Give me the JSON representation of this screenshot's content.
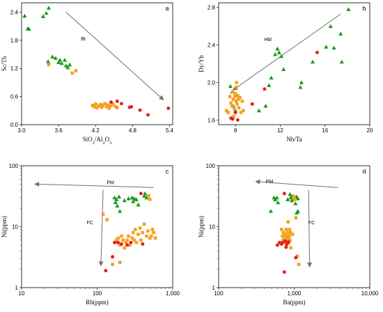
{
  "colors": {
    "green": "#1a9a1a",
    "orange": "#f5a020",
    "red": "#e8201a",
    "arrow": "#707070",
    "frame": "#000000"
  },
  "chart_data": [
    {
      "id": "a",
      "type": "scatter",
      "letter": "a",
      "xlabel": "SiO2/Al2O3",
      "ylabel": "Sc/Th",
      "xscale": "linear",
      "yscale": "linear",
      "xlim": [
        3.0,
        5.45
      ],
      "ylim": [
        0.0,
        2.6
      ],
      "xticks": [
        3.0,
        3.6,
        4.2,
        4.8,
        5.4
      ],
      "xticklabels": [
        "3.0",
        "3.6",
        "4.2",
        "4.8",
        "5.4"
      ],
      "yticks": [
        0.0,
        0.6,
        1.2,
        1.8,
        2.4
      ],
      "yticklabels": [
        "0.0",
        "0.6",
        "1.2",
        "1.8",
        "2.4"
      ],
      "series": [
        {
          "marker": "triangle",
          "color_key": "green",
          "points": [
            [
              3.05,
              2.32
            ],
            [
              3.1,
              2.05
            ],
            [
              3.12,
              2.04
            ],
            [
              3.35,
              2.31
            ],
            [
              3.4,
              2.38
            ],
            [
              3.44,
              2.49
            ],
            [
              3.43,
              1.35
            ],
            [
              3.5,
              1.45
            ],
            [
              3.55,
              1.42
            ],
            [
              3.6,
              1.33
            ],
            [
              3.62,
              1.38
            ],
            [
              3.65,
              1.31
            ],
            [
              3.7,
              1.38
            ],
            [
              3.72,
              1.26
            ],
            [
              3.75,
              1.22
            ],
            [
              3.78,
              1.28
            ]
          ]
        },
        {
          "marker": "square",
          "color_key": "orange",
          "points": [
            [
              3.44,
              1.28
            ],
            [
              3.82,
              1.1
            ],
            [
              3.88,
              1.15
            ],
            [
              4.15,
              0.41
            ],
            [
              4.18,
              0.38
            ],
            [
              4.2,
              0.44
            ],
            [
              4.22,
              0.36
            ],
            [
              4.25,
              0.4
            ],
            [
              4.28,
              0.43
            ],
            [
              4.3,
              0.37
            ],
            [
              4.32,
              0.41
            ],
            [
              4.35,
              0.45
            ],
            [
              4.38,
              0.38
            ],
            [
              4.4,
              0.42
            ],
            [
              4.42,
              0.35
            ],
            [
              4.45,
              0.4
            ],
            [
              4.48,
              0.44
            ],
            [
              4.52,
              0.39
            ],
            [
              4.55,
              0.36
            ]
          ]
        },
        {
          "marker": "circle",
          "color_key": "red",
          "points": [
            [
              4.45,
              0.48
            ],
            [
              4.55,
              0.5
            ],
            [
              4.62,
              0.45
            ],
            [
              4.75,
              0.37
            ],
            [
              4.78,
              0.38
            ],
            [
              4.92,
              0.31
            ],
            [
              5.05,
              0.21
            ],
            [
              5.38,
              0.35
            ]
          ]
        }
      ],
      "annotations": [
        {
          "text": "Bt",
          "x": 4.0,
          "y": 1.8,
          "arrow": [
            [
              3.72,
              2.4
            ],
            [
              5.3,
              0.53
            ]
          ]
        }
      ]
    },
    {
      "id": "b",
      "type": "scatter",
      "letter": "b",
      "xlabel": "Nb/Ta",
      "ylabel": "Dy/Yb",
      "xscale": "linear",
      "yscale": "linear",
      "xlim": [
        6.5,
        20.0
      ],
      "ylim": [
        1.55,
        2.85
      ],
      "xticks": [
        8,
        12,
        16,
        20
      ],
      "xticklabels": [
        "8",
        "12",
        "16",
        "20"
      ],
      "yticks": [
        1.6,
        2.0,
        2.4,
        2.8
      ],
      "yticklabels": [
        "1.6",
        "2.0",
        "2.4",
        "2.8"
      ],
      "series": [
        {
          "marker": "triangle",
          "color_key": "green",
          "points": [
            [
              7.55,
              1.96
            ],
            [
              7.7,
              1.9
            ],
            [
              7.8,
              1.75
            ],
            [
              8.0,
              1.7
            ],
            [
              10.1,
              1.7
            ],
            [
              10.7,
              1.75
            ],
            [
              11.0,
              1.97
            ],
            [
              11.2,
              2.05
            ],
            [
              11.55,
              2.3
            ],
            [
              11.75,
              2.36
            ],
            [
              11.9,
              2.32
            ],
            [
              12.1,
              2.28
            ],
            [
              12.3,
              2.14
            ],
            [
              13.8,
              1.95
            ],
            [
              13.9,
              2.0
            ],
            [
              14.9,
              2.22
            ],
            [
              16.1,
              2.38
            ],
            [
              16.5,
              2.6
            ],
            [
              16.8,
              2.37
            ],
            [
              17.4,
              2.52
            ],
            [
              17.5,
              2.22
            ],
            [
              18.1,
              2.78
            ]
          ]
        },
        {
          "marker": "square",
          "color_key": "orange",
          "points": [
            [
              7.2,
              1.7
            ],
            [
              7.35,
              1.68
            ],
            [
              7.5,
              1.85
            ],
            [
              7.6,
              1.78
            ],
            [
              7.7,
              1.75
            ],
            [
              7.75,
              1.9
            ],
            [
              7.8,
              1.82
            ],
            [
              7.85,
              1.64
            ],
            [
              7.9,
              1.72
            ],
            [
              7.95,
              1.85
            ],
            [
              8.0,
              1.88
            ],
            [
              8.05,
              1.8
            ],
            [
              8.1,
              1.95
            ],
            [
              8.15,
              1.77
            ],
            [
              8.2,
              1.86
            ],
            [
              8.25,
              1.82
            ],
            [
              8.3,
              1.73
            ],
            [
              8.4,
              1.84
            ],
            [
              8.5,
              1.68
            ],
            [
              8.6,
              1.8
            ],
            [
              8.7,
              1.7
            ],
            [
              8.1,
              2.0
            ]
          ]
        },
        {
          "marker": "circle",
          "color_key": "red",
          "points": [
            [
              7.6,
              1.62
            ],
            [
              7.75,
              1.61
            ],
            [
              8.0,
              1.68
            ],
            [
              8.2,
              1.6
            ],
            [
              9.5,
              1.77
            ],
            [
              10.6,
              1.93
            ],
            [
              15.3,
              2.32
            ]
          ]
        }
      ],
      "annotations": [
        {
          "text": "Hbl",
          "x": 10.9,
          "y": 2.44,
          "arrow": [
            [
              17.4,
              2.73
            ],
            [
              7.8,
              1.92
            ]
          ]
        }
      ]
    },
    {
      "id": "c",
      "type": "scatter",
      "letter": "c",
      "xlabel": "Rb(ppm)",
      "ylabel": "Ni(ppm)",
      "xscale": "log",
      "yscale": "log",
      "xlim": [
        10,
        1000
      ],
      "ylim": [
        1,
        100
      ],
      "xticks": [
        10,
        100,
        1000
      ],
      "xticklabels": [
        "10",
        "100",
        "1,000"
      ],
      "yticks": [
        1,
        10,
        100
      ],
      "yticklabels": [
        "1",
        "10",
        "100"
      ],
      "series": [
        {
          "marker": "triangle",
          "color_key": "green",
          "points": [
            [
              170,
              30
            ],
            [
              175,
              25
            ],
            [
              180,
              28
            ],
            [
              185,
              22
            ],
            [
              195,
              31
            ],
            [
              200,
              18
            ],
            [
              230,
              27
            ],
            [
              260,
              29
            ],
            [
              290,
              30
            ],
            [
              300,
              26
            ],
            [
              310,
              29
            ],
            [
              330,
              28
            ],
            [
              350,
              23
            ],
            [
              420,
              32
            ],
            [
              430,
              35
            ],
            [
              450,
              30
            ]
          ]
        },
        {
          "marker": "square",
          "color_key": "orange",
          "points": [
            [
              120,
              16
            ],
            [
              135,
              13
            ],
            [
              180,
              6
            ],
            [
              185,
              5.5
            ],
            [
              190,
              6.5
            ],
            [
              200,
              5
            ],
            [
              210,
              7
            ],
            [
              220,
              6
            ],
            [
              230,
              4.5
            ],
            [
              240,
              5.5
            ],
            [
              250,
              6
            ],
            [
              260,
              7
            ],
            [
              270,
              5
            ],
            [
              290,
              6.5
            ],
            [
              300,
              8
            ],
            [
              310,
              6
            ],
            [
              320,
              9
            ],
            [
              330,
              5.5
            ],
            [
              350,
              7.5
            ],
            [
              370,
              9.5
            ],
            [
              380,
              6
            ],
            [
              400,
              8
            ],
            [
              420,
              11
            ],
            [
              450,
              7
            ],
            [
              470,
              8.5
            ],
            [
              500,
              6.5
            ],
            [
              520,
              7
            ],
            [
              540,
              9
            ],
            [
              560,
              8
            ],
            [
              590,
              6.5
            ],
            [
              200,
              2.6
            ],
            [
              160,
              2.4
            ],
            [
              500,
              28
            ],
            [
              480,
              32
            ]
          ]
        },
        {
          "marker": "circle",
          "color_key": "red",
          "points": [
            [
              130,
              1.9
            ],
            [
              160,
              3.2
            ],
            [
              170,
              5.5
            ],
            [
              190,
              5.5
            ],
            [
              210,
              5.2
            ],
            [
              250,
              5.0
            ],
            [
              280,
              5.5
            ],
            [
              400,
              5.2
            ],
            [
              380,
              35
            ]
          ]
        }
      ],
      "annotations": [
        {
          "text": "PM",
          "x": 150,
          "y": 50,
          "arrow": [
            [
              560,
              44
            ],
            [
              15,
              50
            ]
          ]
        },
        {
          "text": "FC",
          "x": 80,
          "y": 11,
          "arrow": [
            [
              120,
              40
            ],
            [
              112,
              2.3
            ]
          ]
        }
      ]
    },
    {
      "id": "d",
      "type": "scatter",
      "letter": "d",
      "xlabel": "Ba(ppm)",
      "ylabel": "Ni(ppm)",
      "xscale": "log",
      "yscale": "log",
      "xlim": [
        100,
        10000
      ],
      "ylim": [
        1,
        100
      ],
      "xticks": [
        100,
        1000,
        10000
      ],
      "xticklabels": [
        "100",
        "1,000",
        "10,000"
      ],
      "yticks": [
        1,
        10,
        100
      ],
      "yticklabels": [
        "1",
        "10",
        "100"
      ],
      "series": [
        {
          "marker": "triangle",
          "color_key": "green",
          "points": [
            [
              490,
              18
            ],
            [
              540,
              30
            ],
            [
              560,
              28
            ],
            [
              590,
              30
            ],
            [
              610,
              25
            ],
            [
              820,
              28
            ],
            [
              880,
              34
            ],
            [
              900,
              30
            ],
            [
              930,
              27
            ],
            [
              960,
              32
            ],
            [
              1000,
              29
            ],
            [
              1040,
              24
            ],
            [
              1080,
              31
            ],
            [
              1120,
              29
            ],
            [
              1080,
              17
            ],
            [
              1120,
              18
            ]
          ]
        },
        {
          "marker": "square",
          "color_key": "orange",
          "points": [
            [
              680,
              9
            ],
            [
              700,
              7
            ],
            [
              710,
              6
            ],
            [
              720,
              8
            ],
            [
              740,
              5.5
            ],
            [
              750,
              6.5
            ],
            [
              760,
              7.5
            ],
            [
              770,
              6
            ],
            [
              780,
              9
            ],
            [
              790,
              5
            ],
            [
              800,
              7
            ],
            [
              810,
              6
            ],
            [
              820,
              8
            ],
            [
              830,
              12
            ],
            [
              840,
              6.5
            ],
            [
              850,
              5.5
            ],
            [
              860,
              7
            ],
            [
              870,
              9
            ],
            [
              880,
              6
            ],
            [
              890,
              8
            ],
            [
              900,
              4.5
            ],
            [
              950,
              7.5
            ],
            [
              980,
              30
            ],
            [
              1010,
              28
            ],
            [
              1050,
              14
            ],
            [
              1100,
              3.3
            ],
            [
              1150,
              2.4
            ],
            [
              1000,
              31
            ]
          ]
        },
        {
          "marker": "circle",
          "color_key": "red",
          "points": [
            [
              600,
              5
            ],
            [
              640,
              5.5
            ],
            [
              680,
              5.2
            ],
            [
              700,
              5.5
            ],
            [
              740,
              35
            ],
            [
              760,
              5.8
            ],
            [
              780,
              4.6
            ],
            [
              800,
              5.2
            ],
            [
              840,
              5.6
            ],
            [
              1050,
              3.1
            ],
            [
              740,
              1.8
            ]
          ]
        }
      ],
      "annotations": [
        {
          "text": "PM",
          "x": 470,
          "y": 52,
          "arrow": [
            [
              3800,
              44
            ],
            [
              310,
              55
            ]
          ]
        },
        {
          "text": "FC",
          "x": 1700,
          "y": 11,
          "arrow": [
            [
              1550,
              40
            ],
            [
              1600,
              2.2
            ]
          ]
        }
      ]
    }
  ]
}
